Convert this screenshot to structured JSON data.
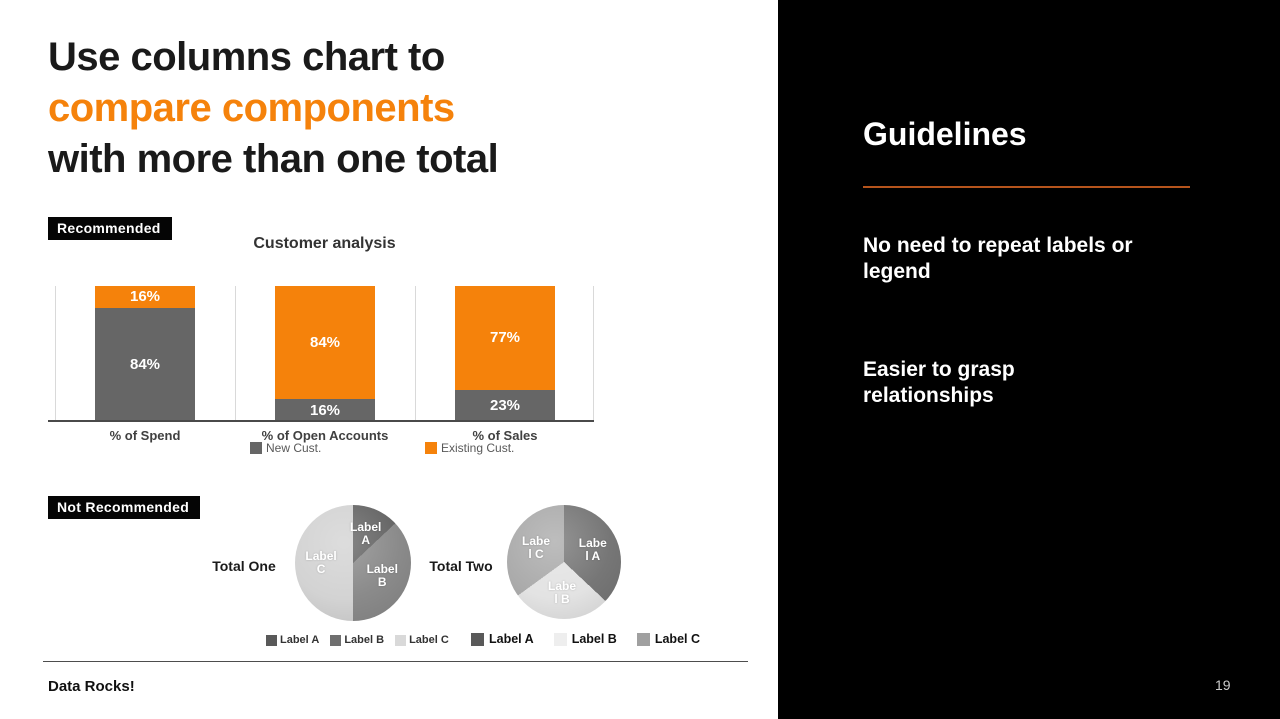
{
  "slide": {
    "title": {
      "line1": "Use columns chart to",
      "line2": "compare components",
      "line3": "with more than one total"
    },
    "accent_orange": "#F5820B",
    "footer": "Data Rocks!",
    "page_number": "19"
  },
  "badges": {
    "recommended": "Recommended",
    "not_recommended": "Not Recommended"
  },
  "chart_data": [
    {
      "type": "bar",
      "subtype": "100%-stacked-column",
      "title": "Customer analysis",
      "categories": [
        "% of Spend",
        "% of Open Accounts",
        "% of Sales"
      ],
      "series": [
        {
          "name": "New Cust.",
          "color": "#666666",
          "values": [
            84,
            16,
            23
          ]
        },
        {
          "name": "Existing Cust.",
          "color": "#F5820B",
          "values": [
            16,
            84,
            77
          ]
        }
      ],
      "value_label_format": "percent",
      "ylim": [
        0,
        100
      ],
      "grid": "vertical category separators, light gray",
      "legend_position": "bottom"
    },
    {
      "type": "pie",
      "title": "Total One",
      "labels": [
        "Label\nA",
        "Label\nB",
        "Label\nC"
      ],
      "values": [
        13,
        37,
        50
      ],
      "colors": [
        "#646464",
        "#8a8a8a",
        "#d3d3d3"
      ],
      "legend": [
        {
          "label": "Label A",
          "color": "#595959"
        },
        {
          "label": "Label B",
          "color": "#6f6f6f"
        },
        {
          "label": "Label C",
          "color": "#d9d9d9"
        }
      ]
    },
    {
      "type": "pie",
      "title": "Total Two",
      "labels": [
        "Labe\nl A",
        "Labe\nl B",
        "Labe\nl C"
      ],
      "values": [
        37,
        28,
        35
      ],
      "colors": [
        "#767676",
        "#e3e3e3",
        "#ababab"
      ],
      "legend": [
        {
          "label": "Label A",
          "color": "#595959"
        },
        {
          "label": "Label B",
          "color": "#eeeeee"
        },
        {
          "label": "Label C",
          "color": "#a0a0a0"
        }
      ]
    }
  ],
  "guidelines": {
    "heading": "Guidelines",
    "rule_color": "#B5541C",
    "points": [
      "No need to repeat labels or\nlegend",
      "Easier to grasp\nrelationships"
    ]
  }
}
